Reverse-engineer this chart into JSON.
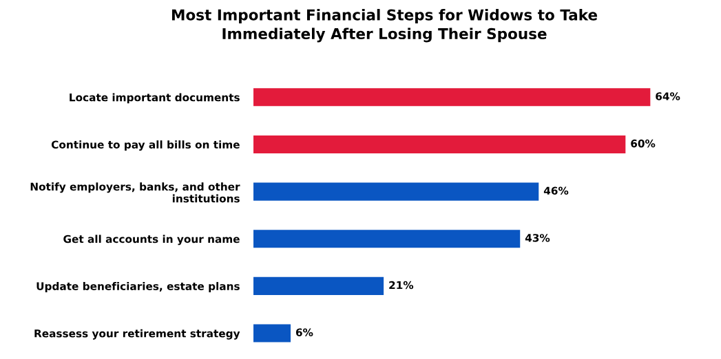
{
  "chart_data": {
    "type": "bar",
    "orientation": "horizontal",
    "title": "Most Important Financial Steps for Widows to Take\nImmediately After Losing Their Spouse",
    "categories": [
      "Locate important documents",
      "Continue to pay all bills on time",
      "Notify employers, banks, and other\ninstitutions",
      "Get all accounts in your name",
      "Update beneficiaries, estate plans",
      "Reassess your retirement strategy"
    ],
    "values": [
      64,
      60,
      46,
      43,
      21,
      6
    ],
    "colors": [
      "#e31b3b",
      "#e31b3b",
      "#0a56c2",
      "#0a56c2",
      "#0a56c2",
      "#0a56c2"
    ],
    "value_labels": [
      "64%",
      "60%",
      "46%",
      "43%",
      "21%",
      "6%"
    ],
    "grid": false,
    "legend": false
  }
}
